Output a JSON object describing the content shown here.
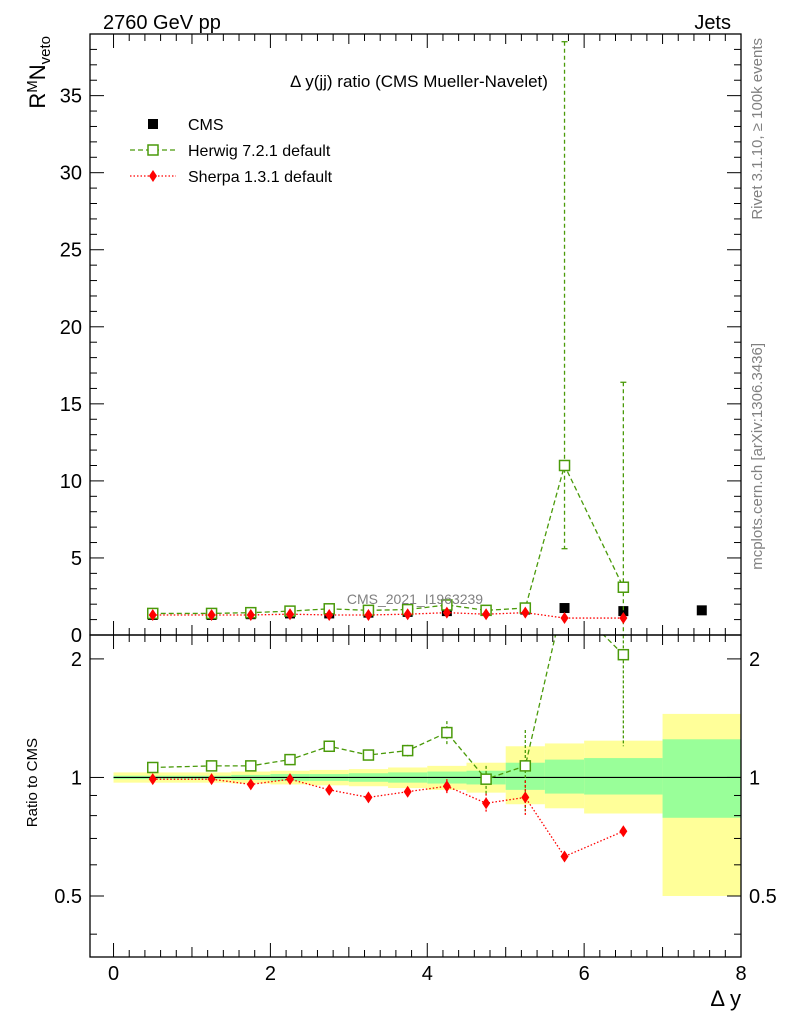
{
  "header": {
    "left": "2760 GeV pp",
    "right": "Jets",
    "side_top": "Rivet 3.1.10, ≥ 100k events",
    "side_bottom": "mcplots.cern.ch [arXiv:1306.3436]",
    "watermark": "CMS_2021_I1963239"
  },
  "chart_data": {
    "type": "scatter",
    "title": "Δ y(jj) ratio (CMS Mueller-Navelet)",
    "xlabel": "Δ y",
    "ylabel_main": "R",
    "ylabel_sup": "M",
    "ylabel_n": "N",
    "ylabel_sub": "veto",
    "ratio_ylabel": "Ratio to CMS",
    "xlim": [
      -0.3,
      8.0
    ],
    "ylim": [
      0,
      39
    ],
    "ratio_ylim": [
      0.35,
      2.3
    ],
    "x_ticks": [
      0,
      2,
      4,
      6,
      8
    ],
    "y_ticks": [
      0,
      5,
      10,
      15,
      20,
      25,
      30,
      35
    ],
    "ratio_ticks": [
      0.5,
      1,
      2
    ],
    "legend_position": "top-left",
    "series": [
      {
        "name": "CMS",
        "color": "#000000",
        "marker": "filled-square",
        "x": [
          0.5,
          1.25,
          1.75,
          2.25,
          2.75,
          3.25,
          3.75,
          4.25,
          4.75,
          5.25,
          5.75,
          6.5,
          7.5
        ],
        "y": [
          1.3,
          1.3,
          1.35,
          1.4,
          1.4,
          1.45,
          1.5,
          1.55,
          1.6,
          1.65,
          1.75,
          1.55,
          1.6
        ]
      },
      {
        "name": "Herwig 7.2.1 default",
        "color": "#4a9a0a",
        "marker": "open-square",
        "line": "dashed",
        "x": [
          0.5,
          1.25,
          1.75,
          2.25,
          2.75,
          3.25,
          3.75,
          4.25,
          4.75,
          5.25,
          5.75,
          6.5
        ],
        "y": [
          1.4,
          1.4,
          1.45,
          1.55,
          1.7,
          1.6,
          1.65,
          1.95,
          1.6,
          1.75,
          11.0,
          3.1
        ],
        "err": [
          0.05,
          0.05,
          0.05,
          0.05,
          0.06,
          0.06,
          0.07,
          0.15,
          0.12,
          0.25,
          5.4,
          13.3
        ],
        "err_up": [
          0.05,
          0.05,
          0.05,
          0.05,
          0.06,
          0.06,
          0.07,
          0.15,
          0.12,
          0.25,
          27.5,
          13.3
        ],
        "ratio": [
          1.06,
          1.07,
          1.07,
          1.11,
          1.2,
          1.14,
          1.17,
          1.3,
          0.99,
          1.07,
          6.3,
          2.05
        ],
        "ratio_err": [
          0.02,
          0.02,
          0.02,
          0.02,
          0.03,
          0.03,
          0.04,
          0.09,
          0.08,
          0.25,
          3.0,
          0.85
        ]
      },
      {
        "name": "Sherpa 1.3.1 default",
        "color": "#ff0000",
        "marker": "filled-diamond",
        "line": "dotted",
        "x": [
          0.5,
          1.25,
          1.75,
          2.25,
          2.75,
          3.25,
          3.75,
          4.25,
          4.75,
          5.25,
          5.75,
          6.5
        ],
        "y": [
          1.3,
          1.3,
          1.3,
          1.35,
          1.3,
          1.3,
          1.35,
          1.45,
          1.35,
          1.45,
          1.1,
          1.1
        ],
        "ratio": [
          0.99,
          0.99,
          0.96,
          0.99,
          0.93,
          0.89,
          0.92,
          0.95,
          0.86,
          0.89,
          0.63,
          0.73
        ],
        "ratio_err": [
          0.01,
          0.01,
          0.01,
          0.01,
          0.015,
          0.015,
          0.025,
          0.04,
          0.05,
          0.09,
          0.0,
          0.0
        ]
      }
    ],
    "bands": [
      {
        "x0": 0.0,
        "x1": 1.0,
        "inner": [
          0.99,
          1.01
        ],
        "outer": [
          0.97,
          1.03
        ]
      },
      {
        "x0": 1.0,
        "x1": 1.5,
        "inner": [
          0.99,
          1.01
        ],
        "outer": [
          0.97,
          1.03
        ]
      },
      {
        "x0": 1.5,
        "x1": 2.0,
        "inner": [
          0.985,
          1.015
        ],
        "outer": [
          0.965,
          1.035
        ]
      },
      {
        "x0": 2.0,
        "x1": 2.5,
        "inner": [
          0.98,
          1.02
        ],
        "outer": [
          0.96,
          1.04
        ]
      },
      {
        "x0": 2.5,
        "x1": 3.0,
        "inner": [
          0.98,
          1.02
        ],
        "outer": [
          0.955,
          1.045
        ]
      },
      {
        "x0": 3.0,
        "x1": 3.5,
        "inner": [
          0.975,
          1.025
        ],
        "outer": [
          0.95,
          1.05
        ]
      },
      {
        "x0": 3.5,
        "x1": 4.0,
        "inner": [
          0.97,
          1.03
        ],
        "outer": [
          0.94,
          1.06
        ]
      },
      {
        "x0": 4.0,
        "x1": 4.5,
        "inner": [
          0.965,
          1.035
        ],
        "outer": [
          0.93,
          1.07
        ]
      },
      {
        "x0": 4.5,
        "x1": 5.0,
        "inner": [
          0.96,
          1.04
        ],
        "outer": [
          0.915,
          1.09
        ]
      },
      {
        "x0": 5.0,
        "x1": 5.5,
        "inner": [
          0.93,
          1.09
        ],
        "outer": [
          0.855,
          1.2
        ]
      },
      {
        "x0": 5.5,
        "x1": 6.0,
        "inner": [
          0.91,
          1.11
        ],
        "outer": [
          0.835,
          1.22
        ]
      },
      {
        "x0": 6.0,
        "x1": 7.0,
        "inner": [
          0.905,
          1.12
        ],
        "outer": [
          0.81,
          1.24
        ]
      },
      {
        "x0": 7.0,
        "x1": 8.0,
        "inner": [
          0.79,
          1.25
        ],
        "outer": [
          0.5,
          1.45
        ]
      }
    ],
    "colors": {
      "band_inner": "#99ff99",
      "band_outer": "#ffff99"
    }
  }
}
